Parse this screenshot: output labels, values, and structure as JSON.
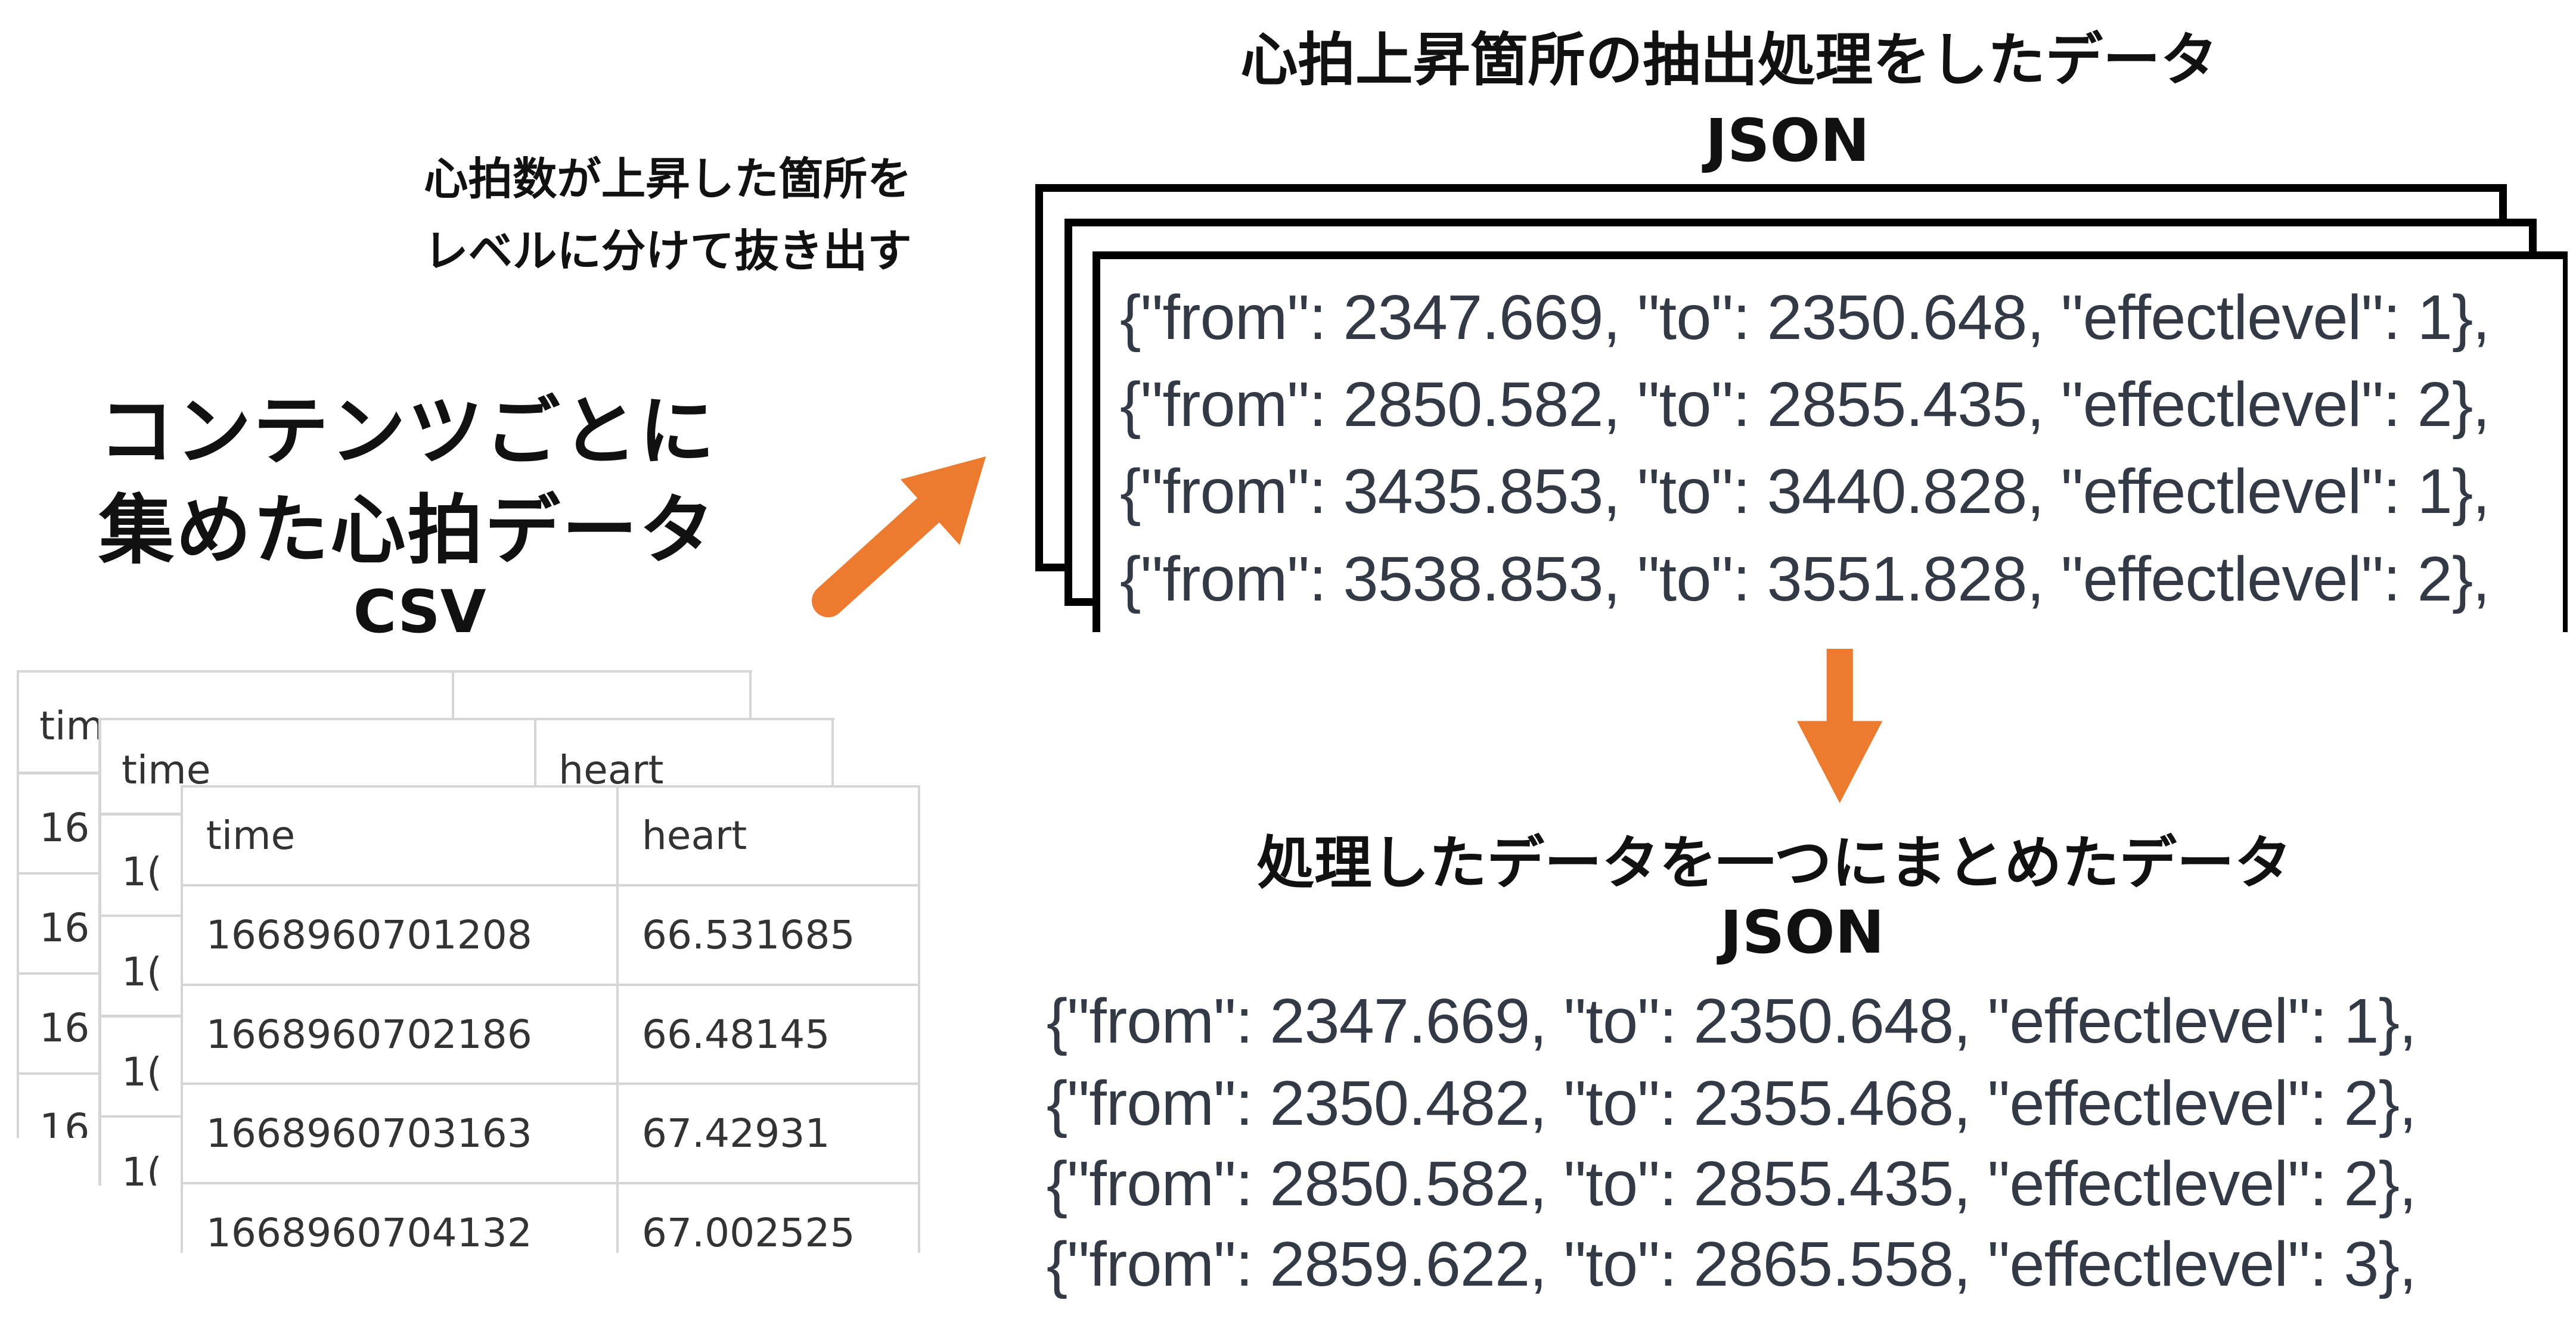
{
  "csv_section": {
    "title_line1": "コンテンツごとに",
    "title_line2": "集めた心拍データ",
    "format": "CSV",
    "table": {
      "headers": [
        "time",
        "heart"
      ],
      "rows": [
        [
          "1668960701208",
          "66.531685"
        ],
        [
          "1668960702186",
          "66.48145"
        ],
        [
          "1668960703163",
          "67.42931"
        ],
        [
          "1668960704132",
          "67.002525"
        ]
      ],
      "back_partial_header": [
        "tim",
        "time",
        "heart"
      ],
      "back_partial_cells": [
        "16",
        "1("
      ]
    }
  },
  "extract_section": {
    "title": "心拍上昇箇所の抽出処理をしたデータ",
    "format": "JSON",
    "note_line1": "心拍数が上昇した箇所を",
    "note_line2": "レベルに分けて抜き出す",
    "lines": [
      "{\"from\": 2347.669, \"to\": 2350.648, \"effectlevel\": 1},",
      "{\"from\": 2850.582, \"to\": 2855.435, \"effectlevel\": 2},",
      "{\"from\": 3435.853, \"to\": 3440.828, \"effectlevel\": 1},",
      "{\"from\": 3538.853, \"to\": 3551.828, \"effectlevel\": 2},"
    ]
  },
  "merged_section": {
    "title": "処理したデータを一つにまとめたデータ",
    "format": "JSON",
    "lines": [
      "{\"from\": 2347.669, \"to\": 2350.648, \"effectlevel\": 1},",
      "{\"from\": 2350.482, \"to\": 2355.468, \"effectlevel\": 2},",
      "{\"from\": 2850.582, \"to\": 2855.435, \"effectlevel\": 2},",
      "{\"from\": 2859.622, \"to\": 2865.558, \"effectlevel\": 3},"
    ]
  },
  "colors": {
    "arrow": "#ec7b30",
    "json_text": "#333a45",
    "heading": "#111111",
    "table_border": "#d6d6d6"
  }
}
